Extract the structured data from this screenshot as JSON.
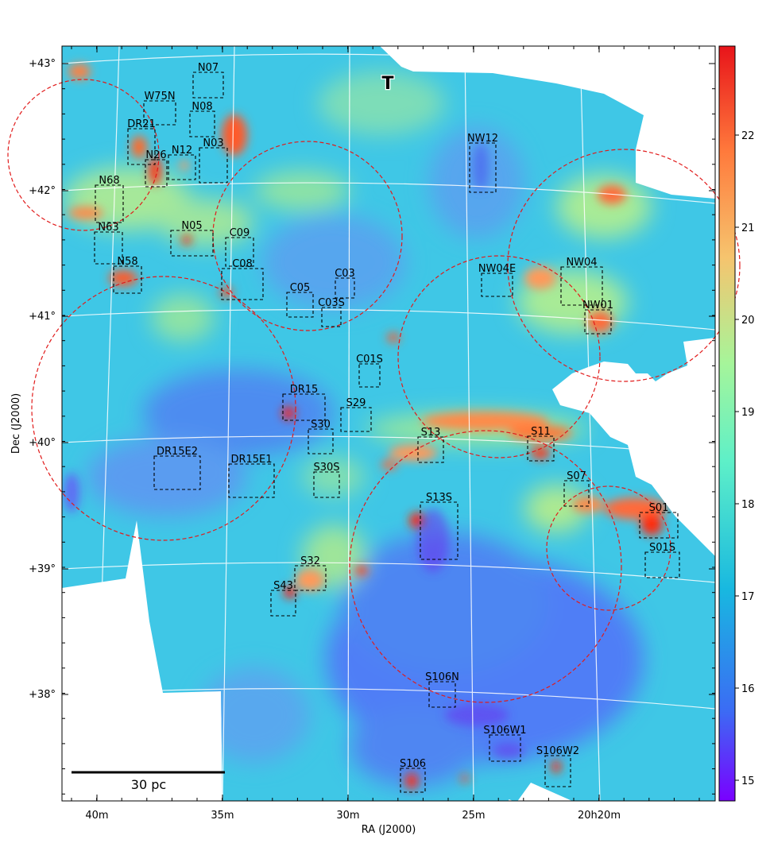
{
  "axes": {
    "x_label": "RA (J2000)",
    "y_label": "Dec (J2000)",
    "x_ticks": [
      "40m",
      "35m",
      "30m",
      "25m",
      "20h20m"
    ],
    "y_ticks": [
      "+43°",
      "+42°",
      "+41°",
      "+40°",
      "+39°",
      "+38°"
    ]
  },
  "colorbar": {
    "ticks": [
      "22",
      "21",
      "20",
      "19",
      "18",
      "17",
      "16",
      "15"
    ],
    "colormap": "rainbow",
    "colors": [
      "#7a00ff",
      "#3b6cf4",
      "#18b8e0",
      "#5ef0c8",
      "#a6f59a",
      "#f6c46e",
      "#ff7a3c",
      "#ff1a00"
    ]
  },
  "scalebar": {
    "label": "30 pc"
  },
  "marker": {
    "label": "T"
  },
  "regions": [
    "N07",
    "W75N",
    "N08",
    "DR21",
    "N03",
    "N12",
    "N26",
    "N68",
    "N05",
    "C09",
    "N63",
    "N58",
    "C08",
    "C03",
    "C05",
    "C03S",
    "NW12",
    "NW04E",
    "NW04",
    "NW01",
    "C01S",
    "DR15",
    "S29",
    "S30",
    "S13",
    "S11",
    "DR15E2",
    "DR15E1",
    "S30S",
    "S07",
    "S13S",
    "S01",
    "S01S",
    "S32",
    "S43",
    "S106N",
    "S106W1",
    "S106W2",
    "S106"
  ],
  "circle_count": 8,
  "styles": {
    "box_color": "#000000",
    "circle_color": "#e11b1b",
    "grid_color": "#ffffff"
  }
}
